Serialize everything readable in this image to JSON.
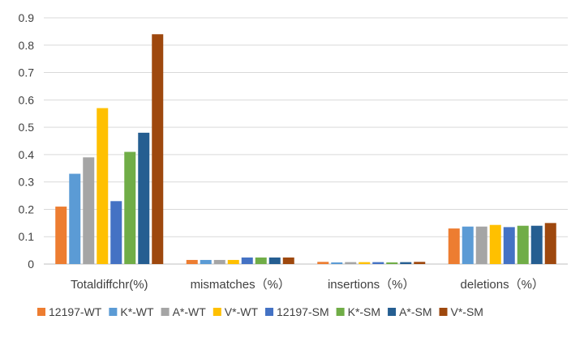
{
  "chart_data": {
    "type": "bar",
    "categories": [
      "Totaldiffchr(%)",
      "mismatches（%）",
      "insertions（%）",
      "deletions（%）"
    ],
    "series": [
      {
        "name": "12197-WT",
        "color": "#ED7D31",
        "values": [
          0.21,
          0.015,
          0.008,
          0.13
        ]
      },
      {
        "name": "K*-WT",
        "color": "#5B9BD5",
        "values": [
          0.33,
          0.015,
          0.006,
          0.137
        ]
      },
      {
        "name": "A*-WT",
        "color": "#A5A5A5",
        "values": [
          0.39,
          0.015,
          0.007,
          0.137
        ]
      },
      {
        "name": "V*-WT",
        "color": "#FFC000",
        "values": [
          0.57,
          0.015,
          0.007,
          0.143
        ]
      },
      {
        "name": "12197-SM",
        "color": "#4472C4",
        "values": [
          0.23,
          0.024,
          0.007,
          0.135
        ]
      },
      {
        "name": "K*-SM",
        "color": "#70AD47",
        "values": [
          0.41,
          0.024,
          0.006,
          0.14
        ]
      },
      {
        "name": "A*-SM",
        "color": "#255E91",
        "values": [
          0.48,
          0.024,
          0.007,
          0.14
        ]
      },
      {
        "name": "V*-SM",
        "color": "#9E480E",
        "values": [
          0.84,
          0.024,
          0.008,
          0.15
        ]
      }
    ],
    "ylim": [
      0,
      0.9
    ],
    "yticks": [
      "0",
      "0.1",
      "0.2",
      "0.3",
      "0.4",
      "0.5",
      "0.6",
      "0.7",
      "0.8",
      "0.9"
    ],
    "grid": true,
    "legend": "bottom"
  }
}
